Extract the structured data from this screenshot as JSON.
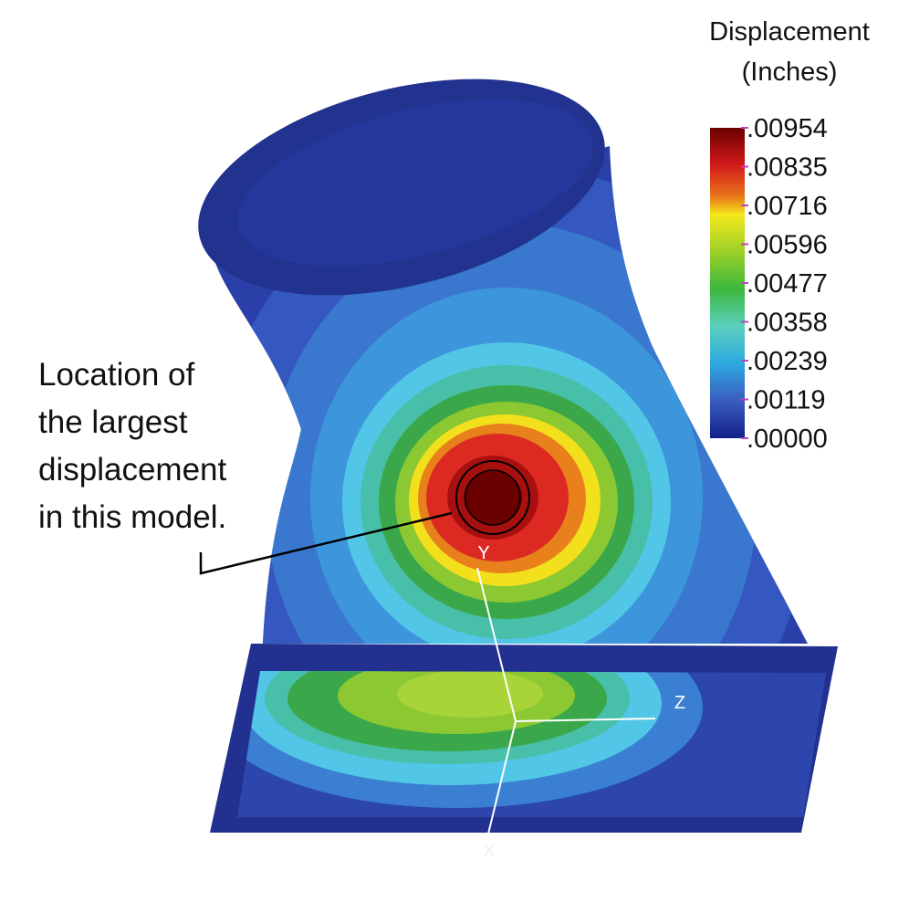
{
  "legend": {
    "title": "Displacement",
    "units": "(Inches)",
    "labels": [
      ".00954",
      ".00835",
      ".00716",
      ".00596",
      ".00477",
      ".00358",
      ".00239",
      ".00119",
      ".00000"
    ]
  },
  "annotation": {
    "lines": [
      "Location of",
      "the largest",
      "displacement",
      "in this model."
    ]
  },
  "axes": {
    "y": "Y",
    "z": "Z",
    "x": "X"
  }
}
